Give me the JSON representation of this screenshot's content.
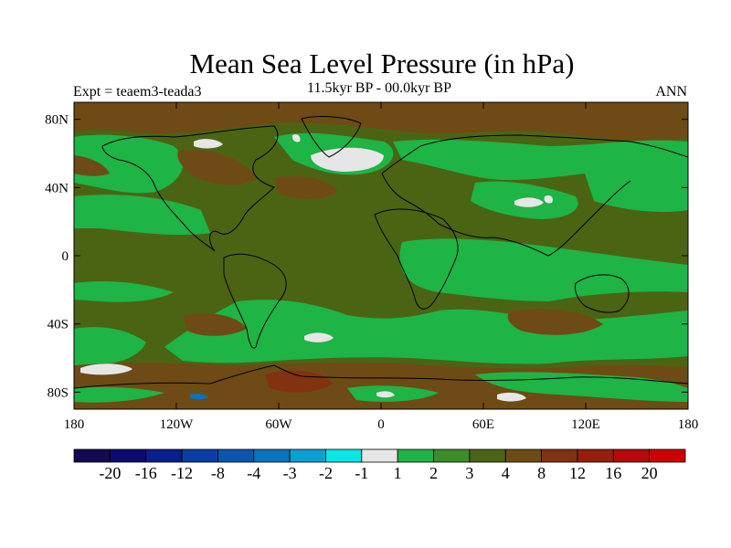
{
  "title": "Mean Sea Level Pressure (in hPa)",
  "subtitle": "11.5kyr BP - 00.0kyr BP",
  "left_label": "Expt = teaem3-teada3",
  "right_label": "ANN",
  "lat_ticks": [
    "80N",
    "40N",
    "0",
    "40S",
    "80S"
  ],
  "lon_ticks": [
    "180",
    "120W",
    "60W",
    "0",
    "60E",
    "120E",
    "180"
  ],
  "colorbar": {
    "labels": [
      "-20",
      "-16",
      "-12",
      "-8",
      "-4",
      "-3",
      "-2",
      "-1",
      "1",
      "2",
      "3",
      "4",
      "8",
      "12",
      "16",
      "20"
    ],
    "colors": [
      "#140a52",
      "#0a0c70",
      "#0a1e8c",
      "#0a3ea6",
      "#0a55ae",
      "#0a74be",
      "#0aa0d2",
      "#0ae6e6",
      "#e6e6e6",
      "#1eb446",
      "#3c8c28",
      "#4b6414",
      "#6e4b14",
      "#823210",
      "#961e0a",
      "#b40a0a",
      "#cd0000"
    ]
  }
}
